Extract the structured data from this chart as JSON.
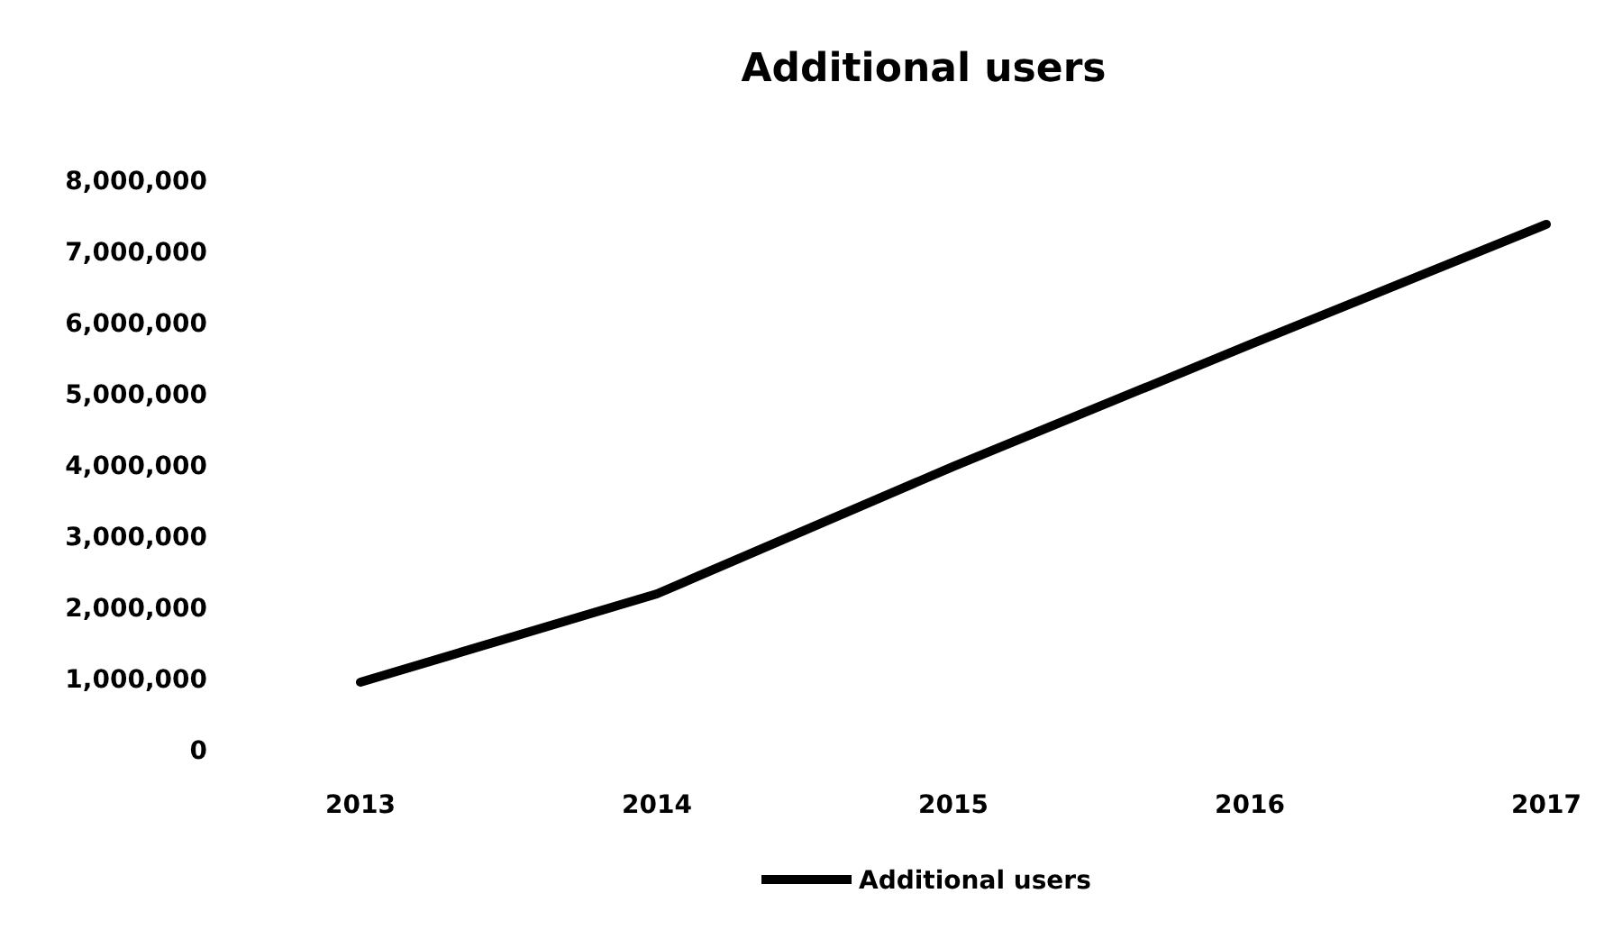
{
  "chart_data": {
    "type": "line",
    "title": "Additional users",
    "categories": [
      "2013",
      "2014",
      "2015",
      "2016",
      "2017"
    ],
    "series": [
      {
        "name": "Additional users",
        "color": "#000000",
        "values": [
          950000,
          2190000,
          3980000,
          5690000,
          7380000
        ]
      }
    ],
    "ylim": [
      0,
      8000000
    ],
    "yticks": [
      {
        "value": 0,
        "label": "0"
      },
      {
        "value": 1000000,
        "label": "1,000,000"
      },
      {
        "value": 2000000,
        "label": "2,000,000"
      },
      {
        "value": 3000000,
        "label": "3,000,000"
      },
      {
        "value": 4000000,
        "label": "4,000,000"
      },
      {
        "value": 5000000,
        "label": "5,000,000"
      },
      {
        "value": 6000000,
        "label": "6,000,000"
      },
      {
        "value": 7000000,
        "label": "7,000,000"
      },
      {
        "value": 8000000,
        "label": "8,000,000"
      }
    ],
    "grid": false,
    "legend": "bottom",
    "marker": "none",
    "line_style": "solid"
  }
}
